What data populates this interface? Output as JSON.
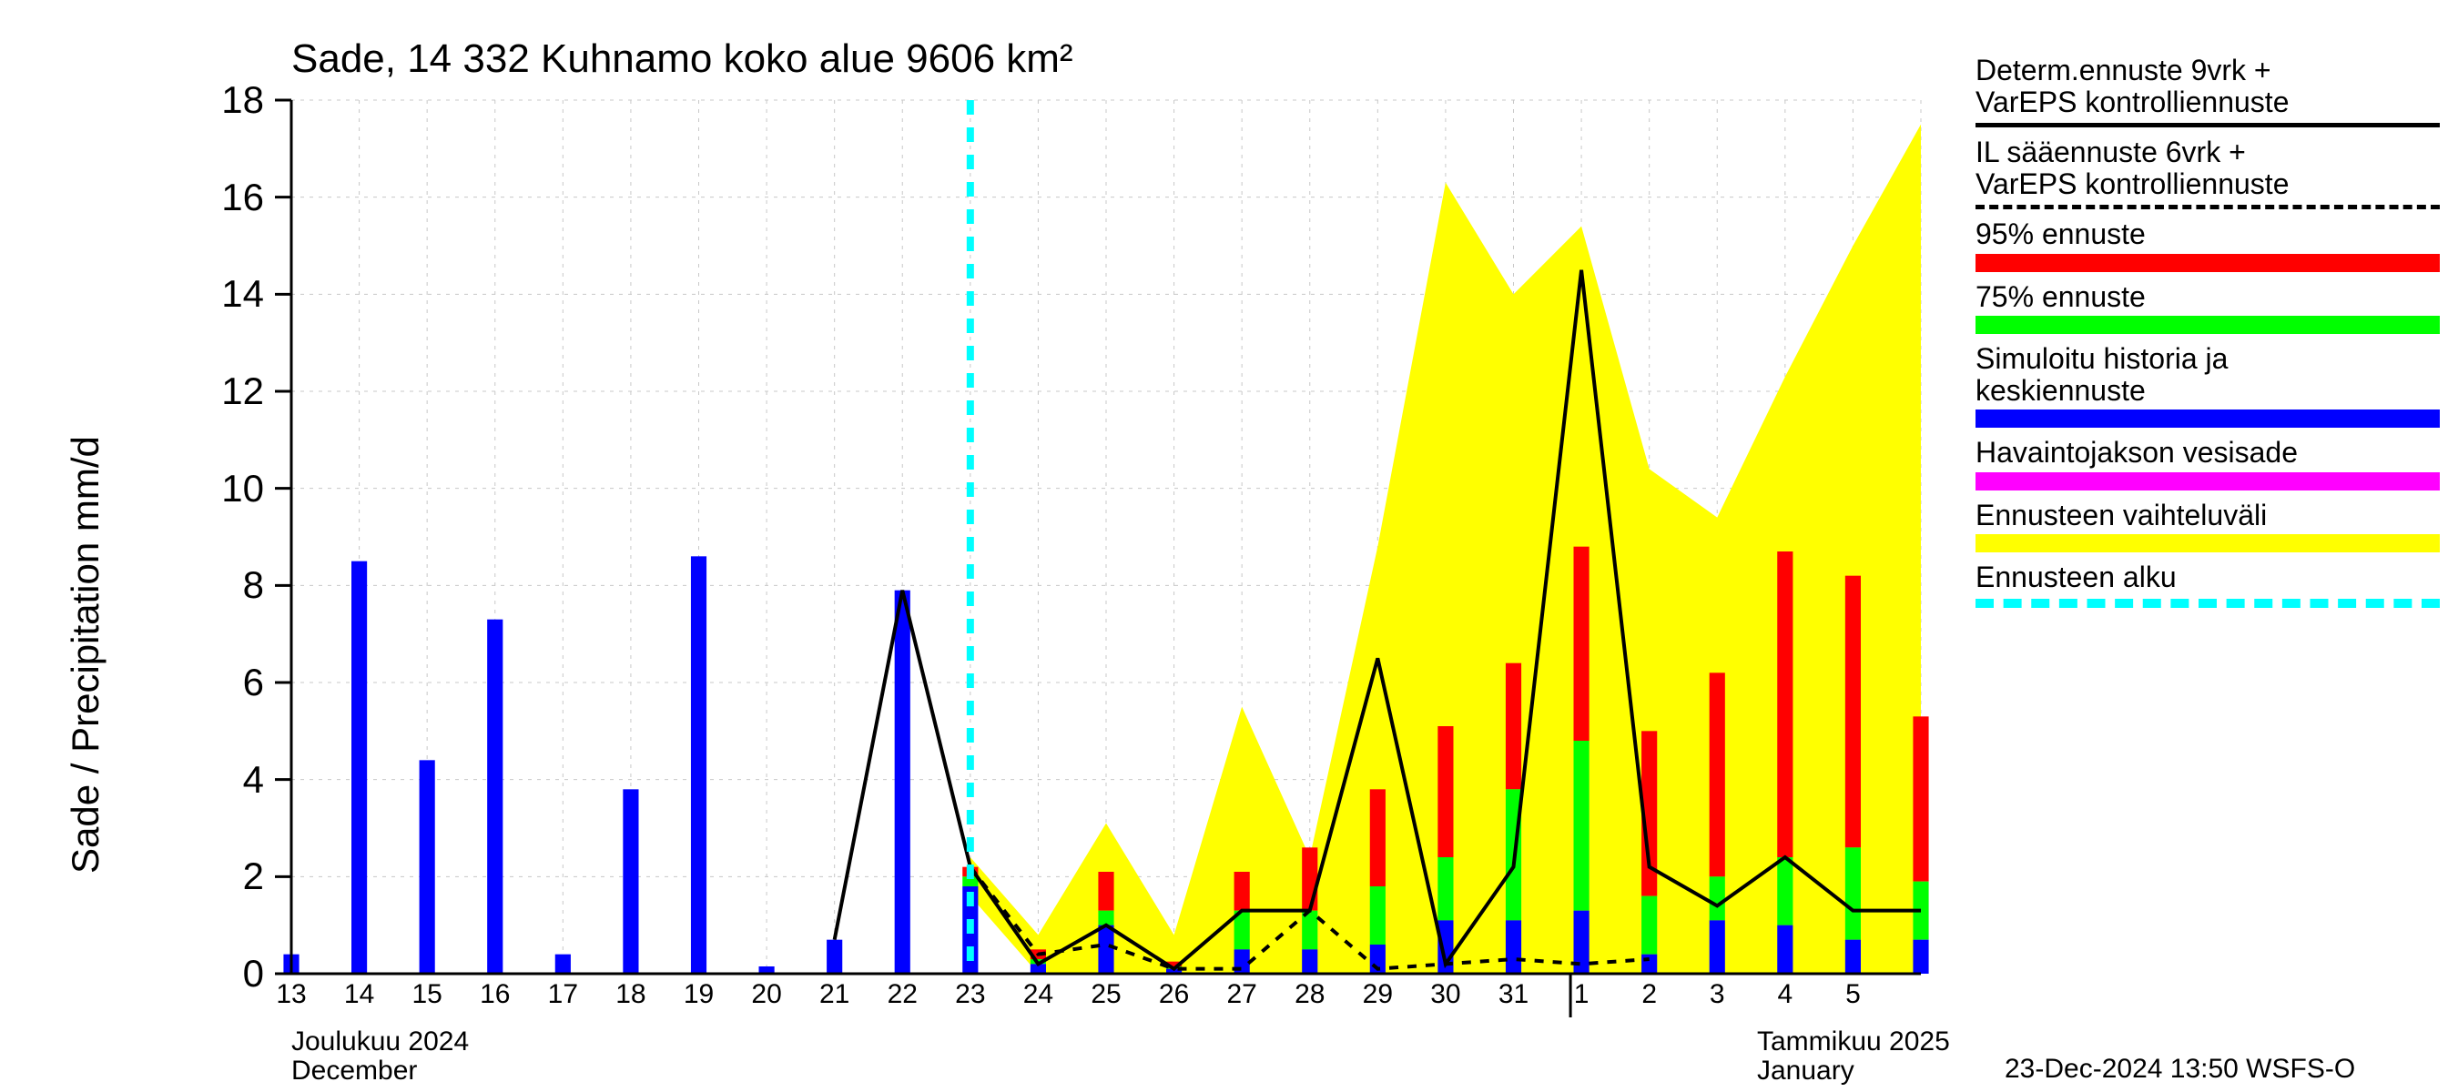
{
  "title": "Sade, 14 332 Kuhnamo koko alue 9606 km²",
  "ylabel": "Sade / Precipitation   mm/d",
  "footer": "23-Dec-2024 13:50 WSFS-O",
  "month_dec_fi": "Joulukuu  2024",
  "month_dec_en": "December",
  "month_jan_fi": "Tammikuu  2025",
  "month_jan_en": "January",
  "chart": {
    "type": "mixed-bar-line-area",
    "xlim": [
      0,
      24
    ],
    "ylim": [
      0,
      18
    ],
    "ytick_step": 2,
    "yticks": [
      0,
      2,
      4,
      6,
      8,
      10,
      12,
      14,
      16,
      18
    ],
    "xtick_labels": [
      "13",
      "14",
      "15",
      "16",
      "17",
      "18",
      "19",
      "20",
      "21",
      "22",
      "23",
      "24",
      "25",
      "26",
      "27",
      "28",
      "29",
      "30",
      "31",
      "1",
      "2",
      "3",
      "4",
      "5"
    ],
    "forecast_start_x": 10,
    "grid_color": "#c8c8c8",
    "grid_line_width": 1,
    "grid_dash": "4,6",
    "axis_color": "#000000",
    "background_color": "#ffffff",
    "bar_width": 0.23,
    "colors": {
      "history_blue": "#0000ff",
      "green_75": "#00ff00",
      "red_95": "#ff0000",
      "magenta": "#ff00ff",
      "yellow": "#ffff00",
      "cyan": "#00ffff",
      "black": "#000000"
    },
    "series": {
      "history_blue": [
        {
          "x": 0,
          "v": 0.4
        },
        {
          "x": 1,
          "v": 8.5
        },
        {
          "x": 2,
          "v": 4.4
        },
        {
          "x": 3,
          "v": 7.3
        },
        {
          "x": 4,
          "v": 0.4
        },
        {
          "x": 5,
          "v": 3.8
        },
        {
          "x": 6,
          "v": 8.6
        },
        {
          "x": 7,
          "v": 0.15
        },
        {
          "x": 8,
          "v": 0.7
        },
        {
          "x": 9,
          "v": 7.9
        }
      ],
      "forecast_bars": [
        {
          "x": 10,
          "blue": 1.8,
          "green": 2.0,
          "red": 2.2
        },
        {
          "x": 11,
          "blue": 0.2,
          "green": 0.3,
          "red": 0.5
        },
        {
          "x": 12,
          "blue": 1.0,
          "green": 1.3,
          "red": 2.1
        },
        {
          "x": 13,
          "blue": 0.1,
          "green": 0.15,
          "red": 0.25
        },
        {
          "x": 14,
          "blue": 0.5,
          "green": 1.3,
          "red": 2.1
        },
        {
          "x": 15,
          "blue": 0.5,
          "green": 1.3,
          "red": 2.6
        },
        {
          "x": 16,
          "blue": 0.6,
          "green": 1.8,
          "red": 3.8
        },
        {
          "x": 17,
          "blue": 1.1,
          "green": 2.4,
          "red": 5.1
        },
        {
          "x": 18,
          "blue": 1.1,
          "green": 3.8,
          "red": 6.4
        },
        {
          "x": 19,
          "blue": 1.3,
          "green": 4.8,
          "red": 8.8
        },
        {
          "x": 20,
          "blue": 0.4,
          "green": 1.6,
          "red": 5.0
        },
        {
          "x": 21,
          "blue": 1.1,
          "green": 2.0,
          "red": 6.2
        },
        {
          "x": 22,
          "blue": 1.0,
          "green": 2.4,
          "red": 8.7
        },
        {
          "x": 23,
          "blue": 0.7,
          "green": 2.6,
          "red": 8.2
        },
        {
          "x": 24,
          "blue": 0.7,
          "green": 1.9,
          "red": 5.3
        }
      ],
      "yellow_area": [
        {
          "x": 10,
          "lo": 1.6,
          "hi": 2.4
        },
        {
          "x": 11,
          "lo": 0.0,
          "hi": 0.8
        },
        {
          "x": 12,
          "lo": 0.0,
          "hi": 3.1
        },
        {
          "x": 13,
          "lo": 0.0,
          "hi": 0.8
        },
        {
          "x": 14,
          "lo": 0.0,
          "hi": 5.5
        },
        {
          "x": 15,
          "lo": 0.0,
          "hi": 2.4
        },
        {
          "x": 16,
          "lo": 0.0,
          "hi": 8.8
        },
        {
          "x": 17,
          "lo": 0.0,
          "hi": 16.3
        },
        {
          "x": 18,
          "lo": 0.0,
          "hi": 14.0
        },
        {
          "x": 19,
          "lo": 0.0,
          "hi": 15.4
        },
        {
          "x": 20,
          "lo": 0.0,
          "hi": 10.4
        },
        {
          "x": 21,
          "lo": 0.0,
          "hi": 9.4
        },
        {
          "x": 22,
          "lo": 0.0,
          "hi": 12.3
        },
        {
          "x": 23,
          "lo": 0.0,
          "hi": 15.0
        },
        {
          "x": 24,
          "lo": 0.0,
          "hi": 17.5
        }
      ],
      "solid_black_line": [
        {
          "x": 8,
          "y": 0.7
        },
        {
          "x": 9,
          "y": 7.9
        },
        {
          "x": 10,
          "y": 2.2
        },
        {
          "x": 11,
          "y": 0.2
        },
        {
          "x": 12,
          "y": 1.0
        },
        {
          "x": 13,
          "y": 0.1
        },
        {
          "x": 14,
          "y": 1.3
        },
        {
          "x": 15,
          "y": 1.3
        },
        {
          "x": 16,
          "y": 6.5
        },
        {
          "x": 17,
          "y": 0.2
        },
        {
          "x": 18,
          "y": 2.2
        },
        {
          "x": 19,
          "y": 14.5
        },
        {
          "x": 20,
          "y": 2.2
        },
        {
          "x": 21,
          "y": 1.4
        },
        {
          "x": 22,
          "y": 2.4
        },
        {
          "x": 23,
          "y": 1.3
        },
        {
          "x": 24,
          "y": 1.3
        }
      ],
      "dash_black_line": [
        {
          "x": 10,
          "y": 2.2
        },
        {
          "x": 11,
          "y": 0.4
        },
        {
          "x": 12,
          "y": 0.6
        },
        {
          "x": 13,
          "y": 0.1
        },
        {
          "x": 14,
          "y": 0.1
        },
        {
          "x": 15,
          "y": 1.3
        },
        {
          "x": 16,
          "y": 0.1
        },
        {
          "x": 17,
          "y": 0.2
        },
        {
          "x": 18,
          "y": 0.3
        },
        {
          "x": 19,
          "y": 0.2
        },
        {
          "x": 20,
          "y": 0.3
        }
      ]
    },
    "line_width": 4,
    "dash_line_dash": "10,10",
    "cyan_dash": "16,14",
    "cyan_width": 8,
    "title_fontsize": 44,
    "label_fontsize": 42,
    "tick_fontsize_y": 42,
    "tick_fontsize_x": 30
  },
  "legend": {
    "items": [
      {
        "label": "Determ.ennuste 9vrk +\nVarEPS kontrolliennuste",
        "style": "solid_black"
      },
      {
        "label": "IL sääennuste 6vrk  +\n VarEPS kontrolliennuste",
        "style": "dash_black"
      },
      {
        "label": "95% ennuste",
        "swatch": "#ff0000"
      },
      {
        "label": "75% ennuste",
        "swatch": "#00ff00"
      },
      {
        "label": "Simuloitu historia ja\nkeskiennuste",
        "swatch": "#0000ff"
      },
      {
        "label": "Havaintojakson vesisade",
        "swatch": "#ff00ff"
      },
      {
        "label": "Ennusteen vaihteluväli",
        "swatch": "#ffff00"
      },
      {
        "label": "Ennusteen alku",
        "style": "cyan_dash"
      }
    ]
  }
}
